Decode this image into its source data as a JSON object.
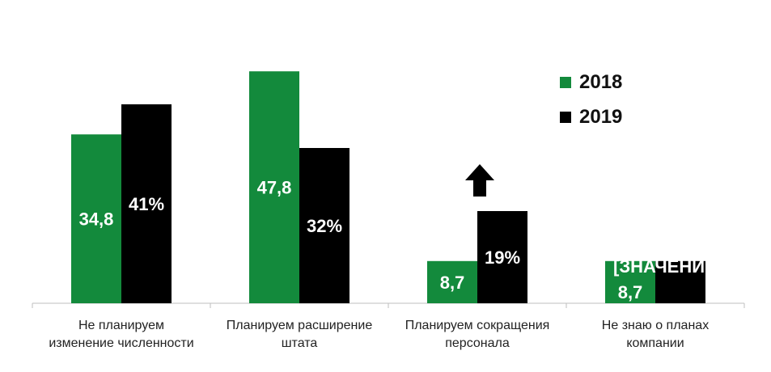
{
  "chart_data": {
    "type": "bar",
    "categories": [
      "Не планируем\nизменение численности",
      "Планируем расширение\nштата",
      "Планируем сокращения\nперсонала",
      "Не знаю о планах\nкомпании"
    ],
    "series": [
      {
        "name": "2018",
        "values": [
          34.8,
          47.8,
          8.7,
          8.7
        ],
        "labels": [
          "34,8",
          "47,8",
          "8,7",
          "8,7"
        ],
        "color": "#138A3C"
      },
      {
        "name": "2019",
        "values": [
          41,
          32,
          19,
          8.7
        ],
        "labels": [
          "41%",
          "32%",
          "19%",
          "[ЗНАЧЕНИЕ]"
        ],
        "color": "#000000"
      }
    ],
    "ylim": [
      0,
      50
    ],
    "grid": false,
    "legend_position": "top-right",
    "annotations": [
      {
        "type": "arrow-up-icon",
        "category_index": 2,
        "series": "2019"
      }
    ]
  }
}
